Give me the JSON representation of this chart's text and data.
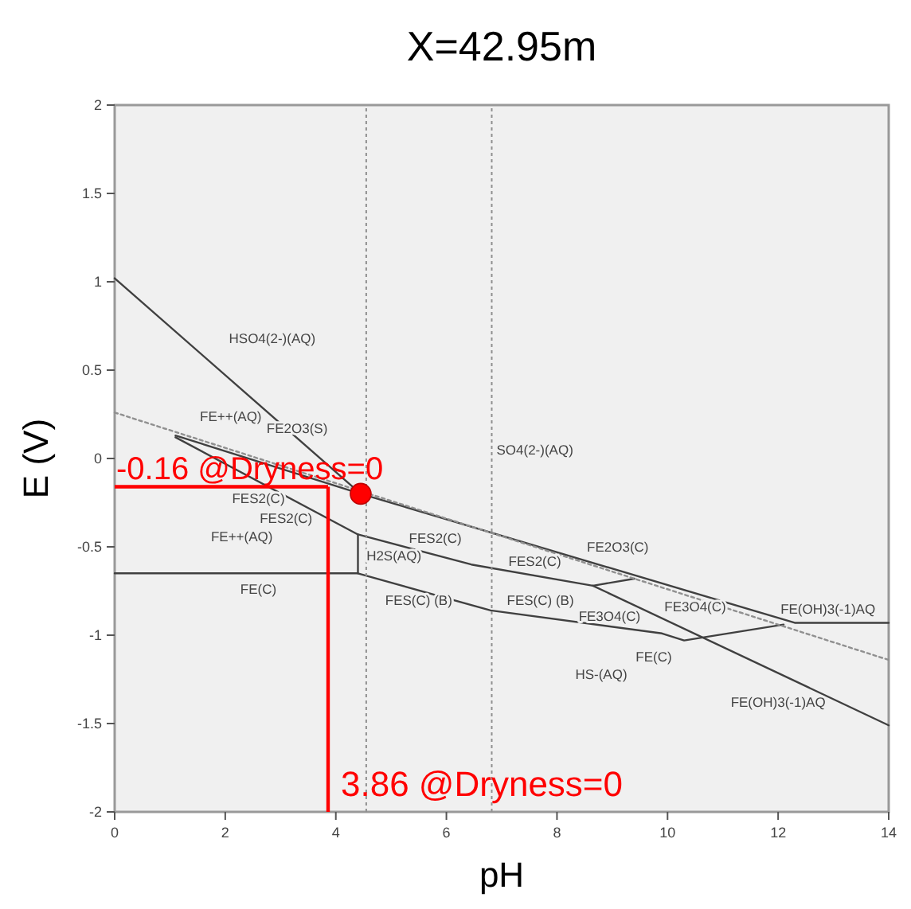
{
  "chart_data": {
    "type": "line",
    "title": "X=42.95m",
    "xlabel": "pH",
    "ylabel": "E (V)",
    "xlim": [
      0,
      14
    ],
    "xticks": [
      0,
      2,
      4,
      6,
      8,
      10,
      12,
      14
    ],
    "ylim": [
      -2,
      2
    ],
    "yticks": [
      -2,
      -1.5,
      -1,
      -0.5,
      0,
      0.5,
      1,
      1.5,
      2
    ],
    "series": [
      {
        "type": "line",
        "color": "#404040",
        "x": [
          0,
          4.45,
          12.3,
          14
        ],
        "values": [
          1.02,
          -0.2,
          -0.93,
          -0.93
        ]
      },
      {
        "type": "line",
        "color": "#404040",
        "x": [
          1.1,
          4.45
        ],
        "values": [
          0.13,
          -0.2
        ]
      },
      {
        "type": "line",
        "color": "#404040",
        "x": [
          1.1,
          4.4,
          6.45,
          8.65,
          9.4
        ],
        "values": [
          0.12,
          -0.43,
          -0.6,
          -0.72,
          -0.68
        ]
      },
      {
        "type": "line",
        "color": "#404040",
        "x": [
          8.65,
          14
        ],
        "values": [
          -0.72,
          -1.51
        ]
      },
      {
        "type": "line",
        "color": "#404040",
        "x": [
          4.4,
          4.4
        ],
        "values": [
          -0.43,
          -0.65
        ]
      },
      {
        "type": "line",
        "color": "#404040",
        "x": [
          0,
          4.4,
          6.8,
          9.9,
          10.3,
          12.1
        ],
        "values": [
          -0.65,
          -0.65,
          -0.86,
          -0.99,
          -1.03,
          -0.94
        ]
      },
      {
        "type": "line",
        "color": "#909090",
        "line_style": "dotted",
        "x": [
          0,
          14
        ],
        "values": [
          0.26,
          -1.14
        ]
      },
      {
        "type": "scatter",
        "color": "#ff0000",
        "marker": "circle",
        "x": [
          4.45
        ],
        "values": [
          -0.2
        ]
      }
    ],
    "ref_lines": [
      {
        "axis": "x",
        "value": 4.55,
        "color": "#909090",
        "line_style": "dotted"
      },
      {
        "axis": "x",
        "value": 6.82,
        "color": "#909090",
        "line_style": "dotted"
      },
      {
        "axis": "y",
        "value": -0.16,
        "label": "-0.16 @Dryness=0",
        "color": "#ff0000"
      },
      {
        "axis": "x",
        "value": 3.86,
        "label": "3.86 @Dryness=0",
        "color": "#ff0000"
      }
    ],
    "annotations": [
      "HSO4(2-)(AQ)",
      "FE++(AQ)",
      "FE2O3(S)",
      "FES2(C)",
      "SO4(2-)(AQ)",
      "FES2(C)",
      "FE++(AQ)",
      "H2S(AQ)",
      "FES(C) (B)",
      "FE(C)",
      "FES2(C)",
      "FE2O3(C)",
      "FES2(C)",
      "FE3O4(C)",
      "FES(C) (B)",
      "FE3O4(C)",
      "FE(OH)3(-1)AQ",
      "FE(C)",
      "HS-(AQ)",
      "FE(OH)3(-1)AQ"
    ]
  }
}
